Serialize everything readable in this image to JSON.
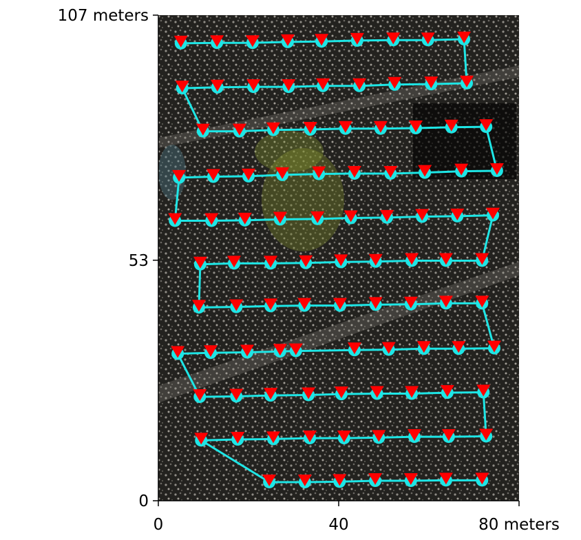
{
  "chart_data": {
    "type": "line",
    "x": [
      5.0,
      13.0,
      20.9,
      28.7,
      36.2,
      44.1,
      52.1,
      59.8,
      67.8,
      68.4,
      60.5,
      52.4,
      44.6,
      36.5,
      28.9,
      21.1,
      13.1,
      5.3,
      9.9,
      18.0,
      25.5,
      33.7,
      41.5,
      49.3,
      57.1,
      65.0,
      72.7,
      75.1,
      67.2,
      59.1,
      51.5,
      43.5,
      35.6,
      27.5,
      20.0,
      12.2,
      4.6,
      3.7,
      11.8,
      19.2,
      27.0,
      35.3,
      42.7,
      50.7,
      58.5,
      66.3,
      74.2,
      71.8,
      63.8,
      56.2,
      48.2,
      40.5,
      32.7,
      24.9,
      16.8,
      9.3,
      9.0,
      17.3,
      24.9,
      32.4,
      40.3,
      48.2,
      56.0,
      63.8,
      71.8,
      74.5,
      66.6,
      58.9,
      51.1,
      43.5,
      30.5,
      27.0,
      19.7,
      11.6,
      4.3,
      9.2,
      17.3,
      24.9,
      33.3,
      40.6,
      48.5,
      56.2,
      64.1,
      72.1,
      72.7,
      64.4,
      56.8,
      48.9,
      41.2,
      33.6,
      25.5,
      17.6,
      9.5,
      24.6,
      32.5,
      40.2,
      48.1,
      56.0,
      63.8,
      71.8
    ],
    "series": [
      {
        "color": "#1ee6e6",
        "marker_color": "#ff0000",
        "values": [
          100.8,
          100.9,
          100.9,
          101.1,
          101.2,
          101.4,
          101.5,
          101.5,
          101.7,
          92.0,
          91.8,
          91.7,
          91.4,
          91.4,
          91.2,
          91.2,
          91.1,
          90.9,
          81.4,
          81.4,
          81.7,
          81.8,
          82.0,
          82.0,
          82.1,
          82.3,
          82.4,
          72.7,
          72.6,
          72.3,
          72.1,
          72.1,
          72.0,
          71.8,
          71.5,
          71.4,
          71.2,
          61.7,
          61.7,
          61.8,
          62.0,
          62.1,
          62.3,
          62.4,
          62.6,
          62.7,
          62.9,
          52.9,
          52.9,
          52.9,
          52.7,
          52.6,
          52.4,
          52.3,
          52.3,
          52.1,
          42.6,
          42.7,
          42.9,
          43.0,
          43.0,
          43.2,
          43.3,
          43.5,
          43.5,
          33.6,
          33.5,
          33.5,
          33.3,
          33.2,
          33.0,
          32.9,
          32.7,
          32.6,
          32.4,
          22.9,
          23.0,
          23.2,
          23.3,
          23.5,
          23.6,
          23.6,
          23.8,
          23.9,
          14.2,
          14.1,
          14.1,
          13.9,
          13.8,
          13.8,
          13.6,
          13.5,
          13.3,
          4.1,
          4.1,
          4.2,
          4.4,
          4.4,
          4.5,
          4.5
        ]
      }
    ],
    "xlim": [
      0,
      80
    ],
    "xticks": [
      0,
      40,
      {
        "value": 80,
        "label": "80 meters"
      }
    ],
    "ylim": [
      0,
      107
    ],
    "yticks": [
      0,
      53,
      {
        "value": 107,
        "label": "107 meters"
      }
    ]
  }
}
